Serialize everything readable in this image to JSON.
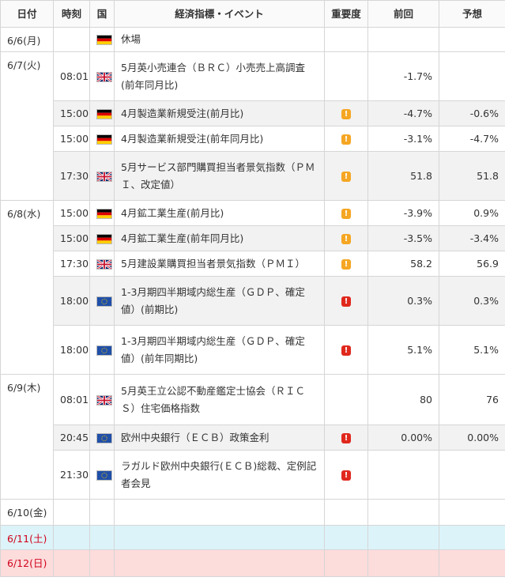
{
  "headers": [
    "日付",
    "時刻",
    "国",
    "経済指標・イベント",
    "重要度",
    "前回",
    "予想"
  ],
  "days": [
    {
      "date": "6/6(月)",
      "rows": [
        {
          "time": "",
          "country": "de-flag-icon",
          "event": "休場",
          "importance": "",
          "prev": "",
          "forecast": ""
        }
      ]
    },
    {
      "date": "6/7(火)",
      "rows": [
        {
          "time": "08:01",
          "country": "uk-flag-icon",
          "event": "5月英小売連合（ＢＲＣ）小売売上高調査(前年同月比)",
          "importance": "",
          "prev": "-1.7%",
          "forecast": ""
        },
        {
          "time": "15:00",
          "country": "de-flag-icon",
          "event": "4月製造業新規受注(前月比)",
          "importance": "mid",
          "prev": "-4.7%",
          "forecast": "-0.6%"
        },
        {
          "time": "15:00",
          "country": "de-flag-icon",
          "event": "4月製造業新規受注(前年同月比)",
          "importance": "mid",
          "prev": "-3.1%",
          "forecast": "-4.7%"
        },
        {
          "time": "17:30",
          "country": "uk-flag-icon",
          "event": "5月サービス部門購買担当者景気指数（ＰＭＩ、改定値）",
          "importance": "mid",
          "prev": "51.8",
          "forecast": "51.8"
        }
      ]
    },
    {
      "date": "6/8(水)",
      "rows": [
        {
          "time": "15:00",
          "country": "de-flag-icon",
          "event": "4月鉱工業生産(前月比)",
          "importance": "mid",
          "prev": "-3.9%",
          "forecast": "0.9%"
        },
        {
          "time": "15:00",
          "country": "de-flag-icon",
          "event": "4月鉱工業生産(前年同月比)",
          "importance": "mid",
          "prev": "-3.5%",
          "forecast": "-3.4%"
        },
        {
          "time": "17:30",
          "country": "uk-flag-icon",
          "event": "5月建設業購買担当者景気指数（ＰＭＩ）",
          "importance": "mid",
          "prev": "58.2",
          "forecast": "56.9"
        },
        {
          "time": "18:00",
          "country": "eu-flag-icon",
          "event": "1-3月期四半期域内総生産（ＧＤＰ、確定値）(前期比)",
          "importance": "high",
          "prev": "0.3%",
          "forecast": "0.3%"
        },
        {
          "time": "18:00",
          "country": "eu-flag-icon",
          "event": "1-3月期四半期域内総生産（ＧＤＰ、確定値）(前年同期比)",
          "importance": "high",
          "prev": "5.1%",
          "forecast": "5.1%"
        }
      ]
    },
    {
      "date": "6/9(木)",
      "rows": [
        {
          "time": "08:01",
          "country": "uk-flag-icon",
          "event": "5月英王立公認不動産鑑定士協会（ＲＩＣＳ）住宅価格指数",
          "importance": "",
          "prev": "80",
          "forecast": "76"
        },
        {
          "time": "20:45",
          "country": "eu-flag-icon",
          "event": "欧州中央銀行（ＥＣＢ）政策金利",
          "importance": "high",
          "prev": "0.00%",
          "forecast": "0.00%"
        },
        {
          "time": "21:30",
          "country": "eu-flag-icon",
          "event": "ラガルド欧州中央銀行(ＥＣＢ)総裁、定例記者会見",
          "importance": "high",
          "prev": "",
          "forecast": ""
        }
      ]
    },
    {
      "date": "6/10(金)",
      "rows": []
    },
    {
      "date": "6/11(土)",
      "rows": [],
      "weekend": "sat"
    },
    {
      "date": "6/12(日)",
      "rows": [],
      "weekend": "sun"
    }
  ],
  "importance_icons": {
    "mid": "!",
    "high": "!"
  },
  "colors": {
    "saturday_bg": "#dcf3f9",
    "sunday_bg": "#fddcdc",
    "weekend_text": "#d0021b",
    "mid": "#f5a623",
    "high": "#e0281d"
  }
}
